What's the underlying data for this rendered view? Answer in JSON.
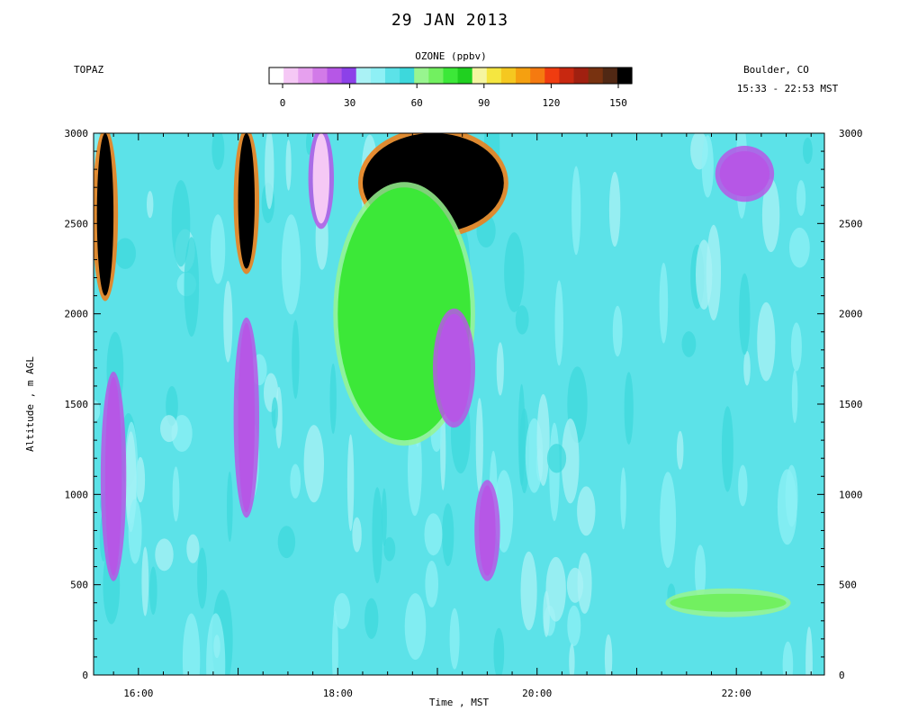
{
  "header": {
    "title": "29 JAN 2013",
    "instrument": "TOPAZ",
    "location": "Boulder, CO",
    "time_range": "15:33 - 22:53 MST"
  },
  "colorbar": {
    "title": "OZONE (ppbv)",
    "ticks": [
      0,
      30,
      60,
      90,
      120,
      150
    ],
    "tick_labels": [
      "0",
      "30",
      "60",
      "90",
      "120",
      "150"
    ],
    "colors": [
      "#ffffff",
      "#f5c8f5",
      "#e6a0ee",
      "#d27ae8",
      "#b657e6",
      "#8c41e8",
      "#aaf2f5",
      "#8ef0f5",
      "#5ce2e8",
      "#3dd8dc",
      "#98f58f",
      "#72f060",
      "#3ce838",
      "#20d020",
      "#f5f5a0",
      "#f5e640",
      "#f5c820",
      "#f5a010",
      "#f57a10",
      "#f03c10",
      "#c82810",
      "#a02010",
      "#783210",
      "#502814",
      "#000000"
    ]
  },
  "chart_data": {
    "type": "heatmap",
    "title": "29 JAN 2013",
    "xlabel": "Time , MST",
    "ylabel": "Altitude , m AGL",
    "x_ticks": [
      "16:00",
      "18:00",
      "20:00",
      "22:00"
    ],
    "x_range": [
      "15:33",
      "22:53"
    ],
    "y_ticks": [
      0,
      500,
      1000,
      1500,
      2000,
      2500,
      3000
    ],
    "y_tick_labels": [
      "0",
      "500",
      "1000",
      "1500",
      "2000",
      "2500",
      "3000"
    ],
    "ylim": [
      0,
      3000
    ],
    "variable": "OZONE (ppbv)",
    "value_range": [
      0,
      150
    ],
    "background_ozone_ppbv": "40-55",
    "features": [
      {
        "time": "15:35-15:45",
        "altitude_m": "2100-3000",
        "ozone_ppbv": ">150"
      },
      {
        "time": "15:40-15:50",
        "altitude_m": "550-1650",
        "ozone_ppbv": "20-30"
      },
      {
        "time": "17:00-17:10",
        "altitude_m": "2250-3000",
        "ozone_ppbv": ">150"
      },
      {
        "time": "17:00-17:10",
        "altitude_m": "900-1950",
        "ozone_ppbv": "20-30"
      },
      {
        "time": "17:45-17:55",
        "altitude_m": "2500-3000",
        "ozone_ppbv": "0-20"
      },
      {
        "time": "18:15-19:40",
        "altitude_m": "2450-3000",
        "ozone_ppbv": ">150"
      },
      {
        "time": "18:00-19:20",
        "altitude_m": "1300-2700",
        "ozone_ppbv": "60-90"
      },
      {
        "time": "19:00-19:20",
        "altitude_m": "1400-2000",
        "ozone_ppbv": "20-30"
      },
      {
        "time": "19:25-19:35",
        "altitude_m": "550-1050",
        "ozone_ppbv": "20-30"
      },
      {
        "time": "21:50-22:20",
        "altitude_m": "2650-2900",
        "ozone_ppbv": "20-30"
      },
      {
        "time": "21:20-22:30",
        "altitude_m": "350-450",
        "ozone_ppbv": "60-80"
      }
    ]
  }
}
